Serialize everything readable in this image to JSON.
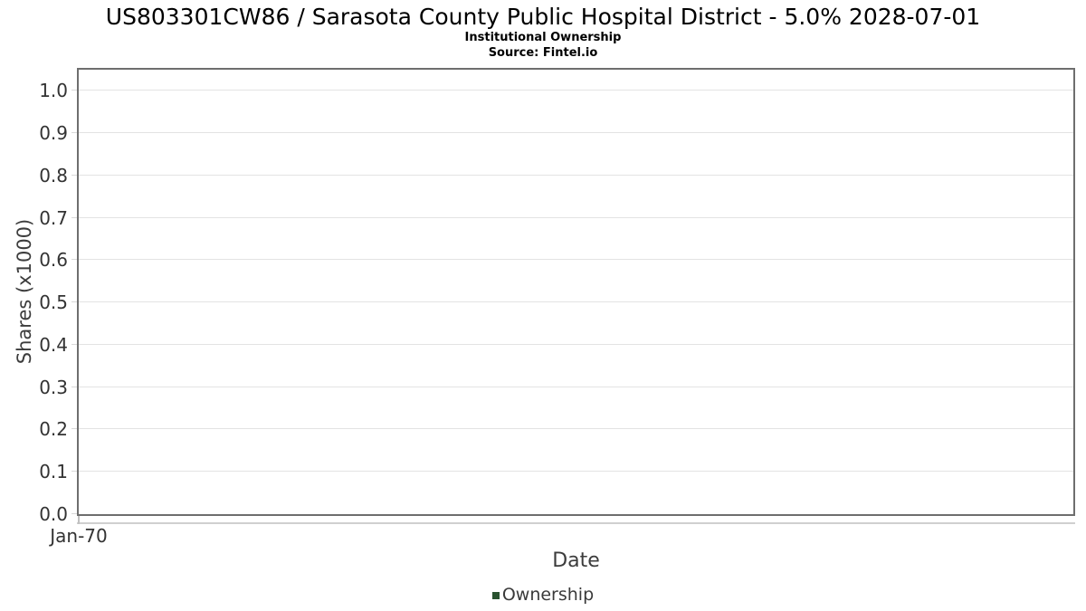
{
  "header": {
    "title": "US803301CW86 / Sarasota County Public Hospital District - 5.0% 2028-07-01",
    "subtitle": "Institutional Ownership",
    "source": "Source: Fintel.io"
  },
  "chart_data": {
    "type": "line",
    "title": "US803301CW86 / Sarasota County Public Hospital District - 5.0% 2028-07-01",
    "subtitle": "Institutional Ownership",
    "source": "Source: Fintel.io",
    "xlabel": "Date",
    "ylabel": "Shares (x1000)",
    "x_tick_labels": [
      "Jan-70"
    ],
    "yticks": [
      0.0,
      0.1,
      0.2,
      0.3,
      0.4,
      0.5,
      0.6,
      0.7,
      0.8,
      0.9,
      1.0
    ],
    "ytick_labels": [
      "0.0",
      "0.1",
      "0.2",
      "0.3",
      "0.4",
      "0.5",
      "0.6",
      "0.7",
      "0.8",
      "0.9",
      "1.0"
    ],
    "ylim": [
      0,
      1.05
    ],
    "grid": true,
    "legend_position": "bottom-center",
    "series": [
      {
        "name": "Ownership",
        "color": "#29522f",
        "x": [],
        "values": []
      }
    ],
    "colors": {
      "plot_border": "#6e6e6e",
      "gridline": "#e3e3e3",
      "legend_swatch": "#29522f"
    }
  }
}
